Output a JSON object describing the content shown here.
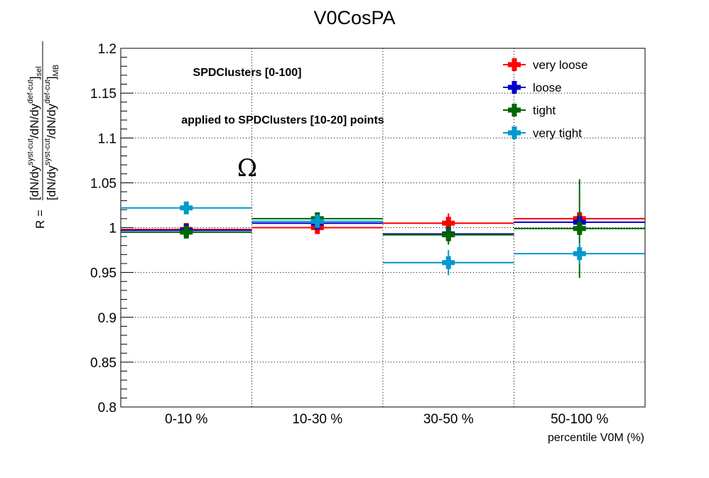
{
  "chart_data": {
    "type": "scatter",
    "title": "V0CosPA",
    "xlabel": "percentile V0M (%)",
    "ylabel": {
      "prefix": "R =",
      "numerator": [
        "[dN/dy",
        "syst-cut",
        "/dN/dy",
        "def-cut",
        "]",
        "sel"
      ],
      "denominator": [
        "[dN/dy",
        "syst-cut",
        "/dN/dy",
        "def-cut",
        "]",
        "MB"
      ]
    },
    "categories": [
      "0-10 %",
      "10-30 %",
      "30-50 %",
      "50-100 %"
    ],
    "ylim": [
      0.8,
      1.2
    ],
    "yticks": [
      "0.8",
      "0.85",
      "0.9",
      "0.95",
      "1",
      "1.05",
      "1.1",
      "1.15",
      "1.2"
    ],
    "grid": true,
    "legend_position": "top-right",
    "annotations": [
      "SPDClusters [0-100]",
      "applied to SPDClusters [10-20] points",
      "Ω"
    ],
    "series": [
      {
        "name": "very loose",
        "color": "#ff0000",
        "values": [
          0.998,
          1.0,
          1.005,
          1.01
        ],
        "errors": [
          0.006,
          0.007,
          0.011,
          0.008
        ]
      },
      {
        "name": "loose",
        "color": "#0000cc",
        "values": [
          0.997,
          1.005,
          0.993,
          1.006
        ],
        "errors": [
          0.006,
          0.006,
          0.009,
          0.009
        ]
      },
      {
        "name": "tight",
        "color": "#006600",
        "values": [
          0.995,
          1.01,
          0.992,
          0.999
        ],
        "errors": [
          0.007,
          0.007,
          0.011,
          0.055
        ]
      },
      {
        "name": "very tight",
        "color": "#0099cc",
        "values": [
          1.022,
          1.007,
          0.961,
          0.971
        ],
        "errors": [
          0.007,
          0.008,
          0.014,
          0.012
        ]
      }
    ]
  }
}
